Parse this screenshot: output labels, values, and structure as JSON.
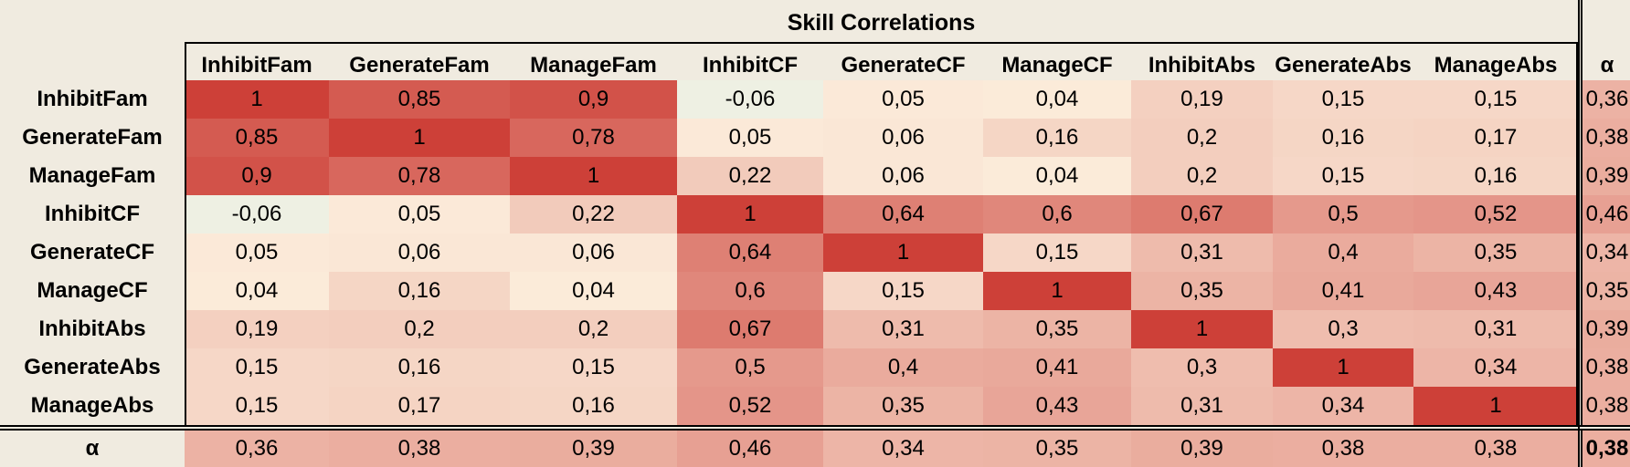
{
  "chart_data": {
    "type": "heatmap",
    "title": "Skill Correlations",
    "columns": [
      "InhibitFam",
      "GenerateFam",
      "ManageFam",
      "InhibitCF",
      "GenerateCF",
      "ManageCF",
      "InhibitAbs",
      "GenerateAbs",
      "ManageAbs"
    ],
    "rows": [
      "InhibitFam",
      "GenerateFam",
      "ManageFam",
      "InhibitCF",
      "GenerateCF",
      "ManageCF",
      "InhibitAbs",
      "GenerateAbs",
      "ManageAbs"
    ],
    "values": [
      [
        1,
        0.85,
        0.9,
        -0.06,
        0.05,
        0.04,
        0.19,
        0.15,
        0.15
      ],
      [
        0.85,
        1,
        0.78,
        0.05,
        0.06,
        0.16,
        0.2,
        0.16,
        0.17
      ],
      [
        0.9,
        0.78,
        1,
        0.22,
        0.06,
        0.04,
        0.2,
        0.15,
        0.16
      ],
      [
        -0.06,
        0.05,
        0.22,
        1,
        0.64,
        0.6,
        0.67,
        0.5,
        0.52
      ],
      [
        0.05,
        0.06,
        0.06,
        0.64,
        1,
        0.15,
        0.31,
        0.4,
        0.35
      ],
      [
        0.04,
        0.16,
        0.04,
        0.6,
        0.15,
        1,
        0.35,
        0.41,
        0.43
      ],
      [
        0.19,
        0.2,
        0.2,
        0.67,
        0.31,
        0.35,
        1,
        0.3,
        0.31
      ],
      [
        0.15,
        0.16,
        0.15,
        0.5,
        0.4,
        0.41,
        0.3,
        1,
        0.34
      ],
      [
        0.15,
        0.17,
        0.16,
        0.52,
        0.35,
        0.43,
        0.31,
        0.34,
        1
      ]
    ],
    "alpha_label": "α",
    "alpha_column": [
      0.36,
      0.38,
      0.39,
      0.46,
      0.34,
      0.35,
      0.39,
      0.38,
      0.38
    ],
    "alpha_row": [
      0.36,
      0.38,
      0.39,
      0.46,
      0.34,
      0.35,
      0.39,
      0.38,
      0.38
    ],
    "alpha_total": 0.38,
    "decimal_separator": ",",
    "colors": {
      "low": "#eef0e3",
      "zero": "#fdf2e0",
      "high": "#cd4038"
    }
  }
}
